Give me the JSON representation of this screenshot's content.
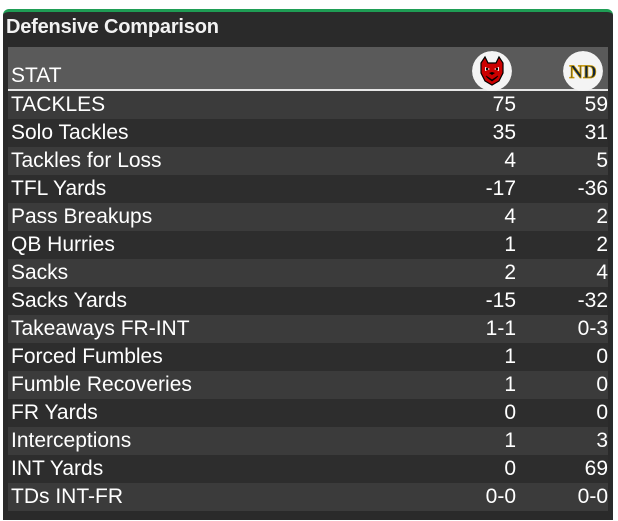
{
  "title": "Defensive Comparison",
  "colors": {
    "accent_border": "#1f9d55",
    "panel_bg": "#2a2a2a",
    "header_bg": "#5a5a5a",
    "row_even": "#3b3b3b",
    "row_odd": "#2d2d2d",
    "text": "#ffffff"
  },
  "header": {
    "stat_label": "STAT",
    "team1_logo_icon": "wolf-head-logo-icon",
    "team2_logo_icon": "nd-monogram-logo-icon"
  },
  "rows": [
    {
      "label": "TACKLES",
      "team1": "75",
      "team2": "59"
    },
    {
      "label": "Solo Tackles",
      "team1": "35",
      "team2": "31"
    },
    {
      "label": "Tackles for Loss",
      "team1": "4",
      "team2": "5"
    },
    {
      "label": "TFL Yards",
      "team1": "-17",
      "team2": "-36"
    },
    {
      "label": "Pass Breakups",
      "team1": "4",
      "team2": "2"
    },
    {
      "label": "QB Hurries",
      "team1": "1",
      "team2": "2"
    },
    {
      "label": "Sacks",
      "team1": "2",
      "team2": "4"
    },
    {
      "label": "Sacks Yards",
      "team1": "-15",
      "team2": "-32"
    },
    {
      "label": "Takeaways FR-INT",
      "team1": "1-1",
      "team2": "0-3"
    },
    {
      "label": "Forced Fumbles",
      "team1": "1",
      "team2": "0"
    },
    {
      "label": "Fumble Recoveries",
      "team1": "1",
      "team2": "0"
    },
    {
      "label": "FR Yards",
      "team1": "0",
      "team2": "0"
    },
    {
      "label": "Interceptions",
      "team1": "1",
      "team2": "3"
    },
    {
      "label": "INT Yards",
      "team1": "0",
      "team2": "69"
    },
    {
      "label": "TDs INT-FR",
      "team1": "0-0",
      "team2": "0-0"
    }
  ]
}
